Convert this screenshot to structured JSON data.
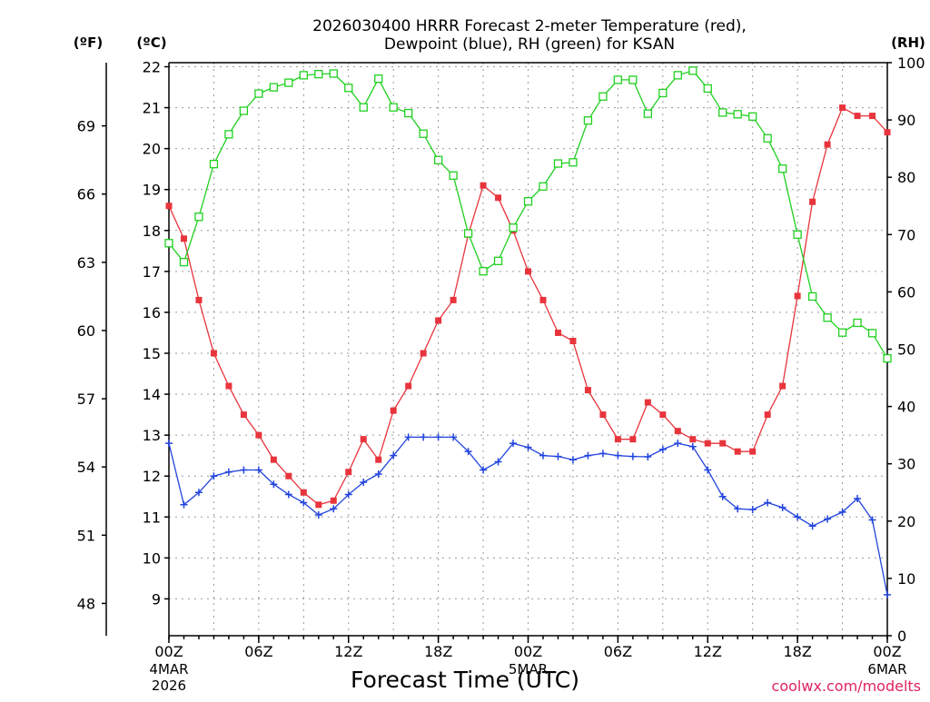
{
  "chart_data": {
    "type": "line",
    "title": "2026030400 HRRR Forecast 2-meter Temperature (red),",
    "subtitle": "Dewpoint (blue), RH (green) for KSAN",
    "xlabel": "Forecast Time (UTC)",
    "credit": "coolwx.com/modelts",
    "unit_labels": {
      "fahrenheit": "(ºF)",
      "celsius": "(ºC)",
      "rh": "(RH)"
    },
    "x_hours": [
      0,
      1,
      2,
      3,
      4,
      5,
      6,
      7,
      8,
      9,
      10,
      11,
      12,
      13,
      14,
      15,
      16,
      17,
      18,
      19,
      20,
      21,
      22,
      23,
      24,
      25,
      26,
      27,
      28,
      29,
      30,
      31,
      32,
      33,
      34,
      35,
      36,
      37,
      38,
      39,
      40,
      41,
      42,
      43,
      44,
      45,
      46,
      47,
      48
    ],
    "xlim": [
      0,
      48
    ],
    "x_ticks": [
      {
        "hour": 0,
        "label": "00Z",
        "date": "4MAR",
        "year": "2026"
      },
      {
        "hour": 6,
        "label": "06Z",
        "date": "",
        "year": ""
      },
      {
        "hour": 12,
        "label": "12Z",
        "date": "",
        "year": ""
      },
      {
        "hour": 18,
        "label": "18Z",
        "date": "",
        "year": ""
      },
      {
        "hour": 24,
        "label": "00Z",
        "date": "5MAR",
        "year": ""
      },
      {
        "hour": 30,
        "label": "06Z",
        "date": "",
        "year": ""
      },
      {
        "hour": 36,
        "label": "12Z",
        "date": "",
        "year": ""
      },
      {
        "hour": 42,
        "label": "18Z",
        "date": "",
        "year": ""
      },
      {
        "hour": 48,
        "label": "00Z",
        "date": "6MAR",
        "year": ""
      }
    ],
    "celsius_axis": {
      "ylim": [
        8.1,
        22.1
      ],
      "ticks": [
        9,
        10,
        11,
        12,
        13,
        14,
        15,
        16,
        17,
        18,
        19,
        20,
        21,
        22
      ]
    },
    "fahrenheit_axis": {
      "ticks": [
        48,
        51,
        54,
        57,
        60,
        63,
        66,
        69
      ]
    },
    "rh_axis": {
      "ylim": [
        0,
        100
      ],
      "ticks": [
        0,
        10,
        20,
        30,
        40,
        50,
        60,
        70,
        80,
        90,
        100
      ]
    },
    "series": [
      {
        "name": "Temperature",
        "unit": "C",
        "color": "#e8343c",
        "marker": "filled-square",
        "values": [
          18.6,
          17.8,
          16.3,
          15.0,
          14.2,
          13.5,
          13.0,
          12.4,
          12.0,
          11.6,
          11.3,
          11.4,
          12.1,
          12.9,
          12.4,
          13.6,
          14.2,
          15.0,
          15.8,
          16.3,
          17.9,
          19.1,
          18.8,
          18.0,
          17.0,
          16.3,
          15.5,
          15.3,
          14.1,
          13.5,
          12.9,
          12.9,
          13.8,
          13.5,
          13.1,
          12.9,
          12.8,
          12.8,
          12.6,
          12.6,
          13.5,
          14.2,
          16.4,
          18.7,
          20.1,
          21.0,
          20.8,
          20.8,
          20.4
        ]
      },
      {
        "name": "Dewpoint",
        "unit": "C",
        "color": "#2244dd",
        "marker": "plus",
        "values": [
          12.8,
          11.3,
          11.6,
          12.0,
          12.1,
          12.15,
          12.15,
          11.8,
          11.55,
          11.35,
          11.05,
          11.2,
          11.55,
          11.85,
          12.05,
          12.5,
          12.95,
          12.95,
          12.95,
          12.95,
          12.6,
          12.15,
          12.35,
          12.8,
          12.7,
          12.5,
          12.48,
          12.4,
          12.5,
          12.55,
          12.5,
          12.48,
          12.47,
          12.65,
          12.8,
          12.72,
          12.15,
          11.5,
          11.2,
          11.18,
          11.35,
          11.23,
          11.0,
          10.78,
          10.95,
          11.12,
          11.45,
          10.93,
          9.1
        ]
      },
      {
        "name": "RH",
        "unit": "%",
        "color": "#20d020",
        "marker": "open-square",
        "values": [
          68.5,
          65.2,
          73.1,
          82.3,
          87.5,
          91.6,
          94.6,
          95.7,
          96.5,
          97.8,
          98.0,
          98.1,
          95.6,
          92.2,
          97.2,
          92.2,
          91.2,
          87.6,
          83.0,
          80.3,
          70.2,
          63.6,
          65.4,
          71.2,
          75.8,
          78.4,
          82.4,
          82.6,
          89.9,
          94.1,
          97.0,
          97.0,
          91.1,
          94.7,
          97.8,
          98.6,
          95.5,
          91.3,
          91.0,
          90.6,
          86.8,
          81.5,
          70.0,
          59.2,
          55.5,
          52.9,
          54.6,
          52.8,
          48.4
        ]
      }
    ]
  }
}
